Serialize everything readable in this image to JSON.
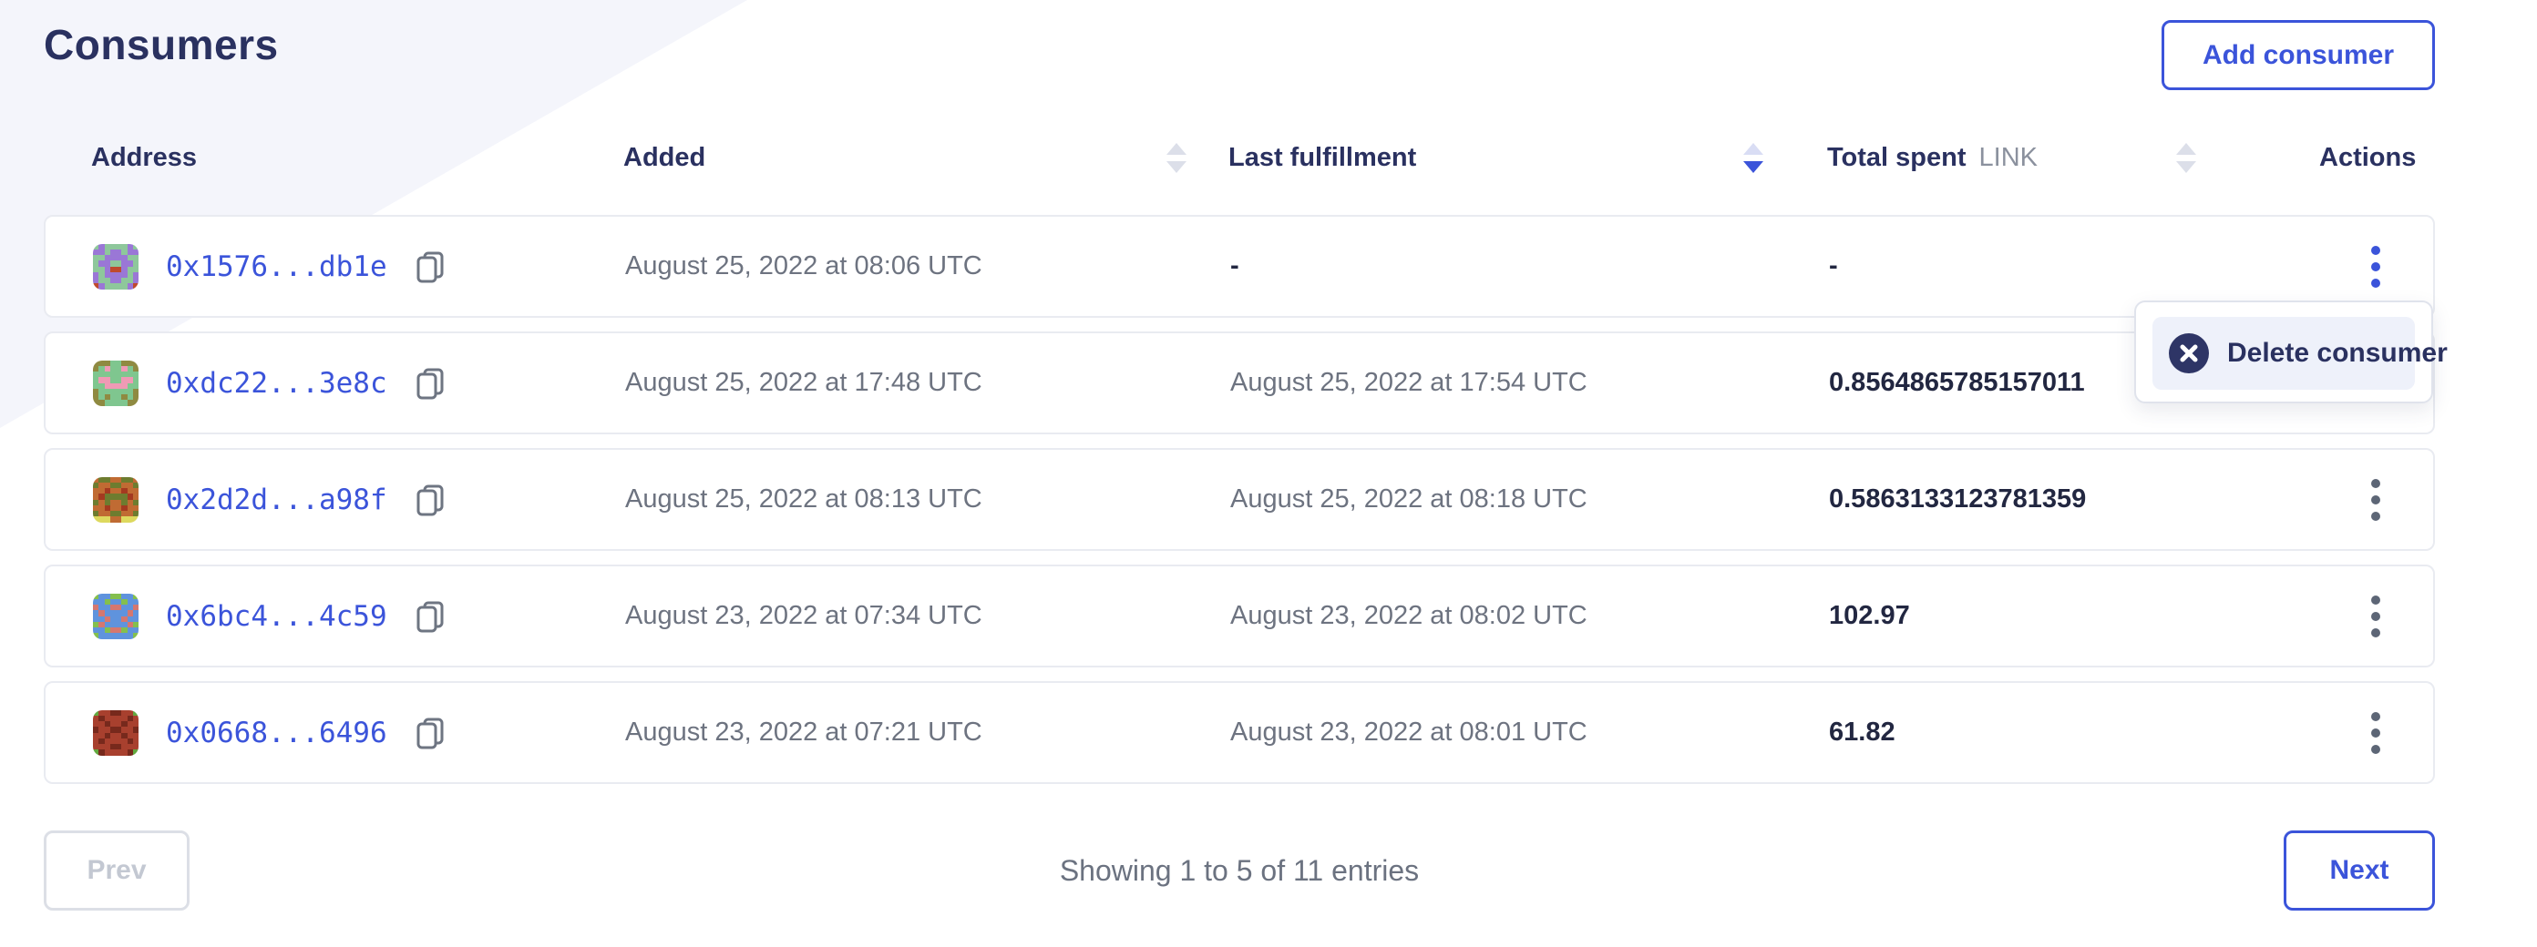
{
  "page": {
    "title": "Consumers"
  },
  "header": {
    "add_button_label": "Add consumer"
  },
  "colors": {
    "accent_blue": "#3b54da",
    "heading_navy": "#2a3160",
    "value_dark": "#222741",
    "muted_gray": "#6d7380",
    "link_unit_gray": "#8b919e",
    "card_border": "#e9ebf1",
    "wedge_background": "#f4f5fb",
    "disabled_text": "#c3c8d2",
    "menu_icon_navy": "#2e3566",
    "menu_item_background": "#eef1fa",
    "kebab_gray": "#5d6676"
  },
  "table": {
    "columns": [
      {
        "label": "Address",
        "sort": "none"
      },
      {
        "label": "Added",
        "sort": "inactive"
      },
      {
        "label": "Last fulfillment",
        "sort": "desc"
      },
      {
        "label": "Total spent",
        "unit": "LINK",
        "sort": "inactive"
      },
      {
        "label": "Actions",
        "sort": "none"
      }
    ],
    "rows": [
      {
        "address": "0x1576...db1e",
        "added": "August 25, 2022 at 08:06 UTC",
        "last_fulfillment": "-",
        "total_spent": "-",
        "menu_open": true,
        "avatar": {
          "palette": {
            "g": "#8ec79b",
            "p": "#9a77d6",
            "r": "#bf4a2d"
          },
          "grid": [
            "gpggggpg",
            "ppgppgpp",
            "ggppppgg",
            "gppggppg",
            "ggprrpgg",
            "pgppppgp",
            "pggppggp",
            "rpggggpr"
          ]
        }
      },
      {
        "address": "0xdc22...3e8c",
        "added": "August 25, 2022 at 17:48 UTC",
        "last_fulfillment": "August 25, 2022 at 17:54 UTC",
        "total_spent": "0.8564865785157011",
        "menu_open": false,
        "avatar": {
          "palette": {
            "g": "#7fc68f",
            "o": "#8f8a41",
            "k": "#ef9ab5"
          },
          "grid": [
            "oooggooo",
            "ogkggkgo",
            "gggggggg",
            "gkkggkkg",
            "ggkkkkgg",
            "oggggggo",
            "ogoggogo",
            "ooggggoo"
          ]
        }
      },
      {
        "address": "0x2d2d...a98f",
        "added": "August 25, 2022 at 08:13 UTC",
        "last_fulfillment": "August 25, 2022 at 08:18 UTC",
        "total_spent": "0.5863133123781359",
        "menu_open": false,
        "avatar": {
          "palette": {
            "a": "#c06b33",
            "v": "#6e7c2f",
            "d": "#a43a20",
            "y": "#ddd95e"
          },
          "grid": [
            "avvaavva",
            "vaavvaav",
            "aadaadaa",
            "advvvvda",
            "vavaavav",
            "aadaadaa",
            "vaavvaav",
            "yyyaayyy"
          ]
        }
      },
      {
        "address": "0x6bc4...4c59",
        "added": "August 23, 2022 at 07:34 UTC",
        "last_fulfillment": "August 23, 2022 at 08:02 UTC",
        "total_spent": "102.97",
        "menu_open": false,
        "avatar": {
          "palette": {
            "b": "#5f93dd",
            "n": "#84bf4e",
            "s": "#d5776f"
          },
          "grid": [
            "nbbnnbbn",
            "bbnbbnbb",
            "sbbssbbs",
            "bsbbbbsb",
            "bbsbbsbb",
            "nsbbbbsn",
            "bbnssnbb",
            "nbbbbbbn"
          ]
        }
      },
      {
        "address": "0x0668...6496",
        "added": "August 23, 2022 at 07:21 UTC",
        "last_fulfillment": "August 23, 2022 at 08:01 UTC",
        "total_spent": "61.82",
        "menu_open": false,
        "avatar": {
          "palette": {
            "c": "#a8402e",
            "m": "#77291c",
            "e": "#63a83f"
          },
          "grid": [
            "eccmmcce",
            "cmccccmc",
            "ccmccmcc",
            "mccmmccm",
            "ccmccmcc",
            "cmccccmc",
            "cccmmccc",
            "emccccme"
          ]
        }
      }
    ]
  },
  "menu": {
    "items": [
      {
        "label": "Delete consumer",
        "icon": "x-circle-icon"
      }
    ]
  },
  "pagination": {
    "prev_label": "Prev",
    "summary": "Showing 1 to 5 of 11 entries",
    "next_label": "Next"
  }
}
